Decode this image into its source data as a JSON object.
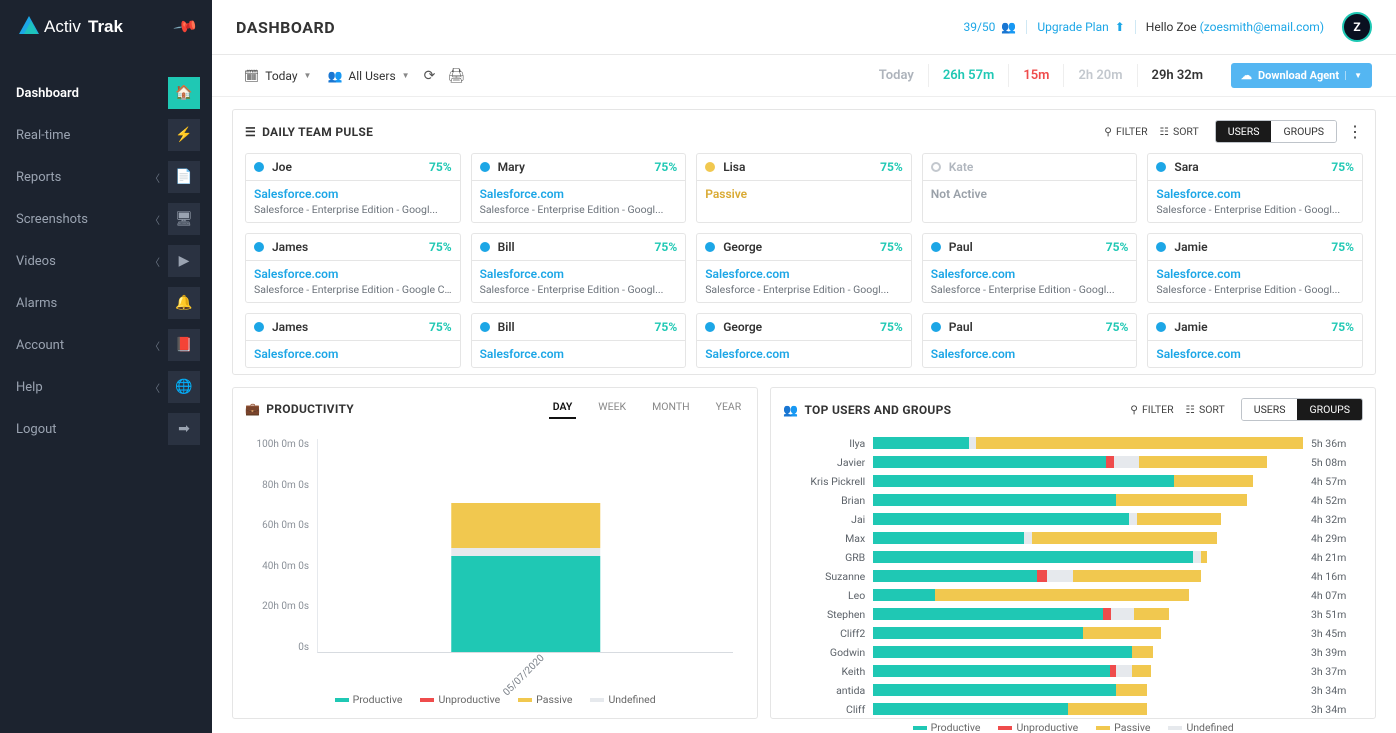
{
  "brand": {
    "name": "ActivTrak"
  },
  "sidebar": {
    "items": [
      {
        "label": "Dashboard",
        "icon": "home",
        "active": true,
        "chev": false
      },
      {
        "label": "Real-time",
        "icon": "bolt",
        "chev": false
      },
      {
        "label": "Reports",
        "icon": "file",
        "chev": true
      },
      {
        "label": "Screenshots",
        "icon": "devices",
        "chev": true
      },
      {
        "label": "Videos",
        "icon": "video",
        "chev": true
      },
      {
        "label": "Alarms",
        "icon": "bell",
        "chev": false
      },
      {
        "label": "Account",
        "icon": "book",
        "chev": true
      },
      {
        "label": "Help",
        "icon": "globe",
        "chev": true
      },
      {
        "label": "Logout",
        "icon": "exit",
        "chev": false
      }
    ]
  },
  "header": {
    "title": "DASHBOARD",
    "agents": "39/50",
    "upgrade": "Upgrade Plan",
    "hello": "Hello Zoe",
    "email": "(zoesmith@email.com)",
    "avatar": "Z"
  },
  "toolbar": {
    "date": "Today",
    "scope": "All Users",
    "times": {
      "label": "Today",
      "productive": "26h 57m",
      "unproductive": "15m",
      "passive": "2h 20m",
      "total": "29h 32m"
    },
    "download": "Download Agent"
  },
  "colors": {
    "productive": "#1fc8b4",
    "unproductive": "#ef4c4c",
    "passive": "#f1c84f",
    "undefined": "#e6e9ed",
    "blue": "#1ca6e6"
  },
  "pulse": {
    "title": "DAILY TEAM PULSE",
    "filter": "FILTER",
    "sort": "SORT",
    "seg": [
      "USERS",
      "GROUPS"
    ],
    "seg_active": 0,
    "rows": [
      [
        {
          "name": "Joe",
          "pct": "75%",
          "status": "active",
          "app": "Salesforce.com",
          "sub": "Salesforce - Enterprise Edition - Googl..."
        },
        {
          "name": "Mary",
          "pct": "75%",
          "status": "active",
          "app": "Salesforce.com",
          "sub": "Salesforce - Enterprise Edition - Googl..."
        },
        {
          "name": "Lisa",
          "pct": "75%",
          "status": "passive",
          "app": "Passive",
          "sub": ""
        },
        {
          "name": "Kate",
          "pct": "",
          "status": "inactive",
          "app": "Not Active",
          "sub": ""
        },
        {
          "name": "Sara",
          "pct": "75%",
          "status": "active",
          "app": "Salesforce.com",
          "sub": "Salesforce - Enterprise Edition - Googl..."
        }
      ],
      [
        {
          "name": "James",
          "pct": "75%",
          "status": "active",
          "app": "Salesforce.com",
          "sub": "Salesforce - Enterprise Edition - Google C..."
        },
        {
          "name": "Bill",
          "pct": "75%",
          "status": "active",
          "app": "Salesforce.com",
          "sub": "Salesforce - Enterprise Edition - Googl..."
        },
        {
          "name": "George",
          "pct": "75%",
          "status": "active",
          "app": "Salesforce.com",
          "sub": "Salesforce - Enterprise Edition - Googl..."
        },
        {
          "name": "Paul",
          "pct": "75%",
          "status": "active",
          "app": "Salesforce.com",
          "sub": "Salesforce - Enterprise Edition - Googl..."
        },
        {
          "name": "Jamie",
          "pct": "75%",
          "status": "active",
          "app": "Salesforce.com",
          "sub": "Salesforce - Enterprise Edition - Googl..."
        }
      ],
      [
        {
          "name": "James",
          "pct": "75%",
          "status": "active",
          "app": "Salesforce.com",
          "sub": ""
        },
        {
          "name": "Bill",
          "pct": "75%",
          "status": "active",
          "app": "Salesforce.com",
          "sub": ""
        },
        {
          "name": "George",
          "pct": "75%",
          "status": "active",
          "app": "Salesforce.com",
          "sub": ""
        },
        {
          "name": "Paul",
          "pct": "75%",
          "status": "active",
          "app": "Salesforce.com",
          "sub": ""
        },
        {
          "name": "Jamie",
          "pct": "75%",
          "status": "active",
          "app": "Salesforce.com",
          "sub": ""
        }
      ]
    ]
  },
  "productivity": {
    "title": "PRODUCTIVITY",
    "tabs": [
      "DAY",
      "WEEK",
      "MONTH",
      "YEAR"
    ],
    "active_tab": 0,
    "y_ticks": [
      "100h 0m 0s",
      "80h 0m 0s",
      "60h 0m 0s",
      "40h 0m 0s",
      "20h 0m 0s",
      "0s"
    ],
    "y_max_hours": 100,
    "x_label": "05/07/2020",
    "stack": {
      "productive": 45,
      "undefined": 4,
      "passive": 21,
      "unproductive": 0
    },
    "legend": [
      [
        "Productive",
        "#1fc8b4"
      ],
      [
        "Unproductive",
        "#ef4c4c"
      ],
      [
        "Passive",
        "#f1c84f"
      ],
      [
        "Undefined",
        "#e6e9ed"
      ]
    ]
  },
  "topusers": {
    "title": "TOP USERS AND GROUPS",
    "filter": "FILTER",
    "sort": "SORT",
    "seg": [
      "USERS",
      "GROUPS"
    ],
    "seg_active": 1,
    "max_minutes": 336,
    "rows": [
      {
        "name": "Ilya",
        "time": "5h 36m",
        "seg": [
          {
            "c": "productive",
            "m": 75
          },
          {
            "c": "undefined",
            "m": 5
          },
          {
            "c": "passive",
            "m": 256
          }
        ]
      },
      {
        "name": "Javier",
        "time": "5h 08m",
        "seg": [
          {
            "c": "productive",
            "m": 182
          },
          {
            "c": "unproductive",
            "m": 6
          },
          {
            "c": "undefined",
            "m": 20
          },
          {
            "c": "passive",
            "m": 100
          }
        ]
      },
      {
        "name": "Kris Pickrell",
        "time": "4h 57m",
        "seg": [
          {
            "c": "productive",
            "m": 235
          },
          {
            "c": "passive",
            "m": 62
          }
        ]
      },
      {
        "name": "Brian",
        "time": "4h 52m",
        "seg": [
          {
            "c": "productive",
            "m": 190
          },
          {
            "c": "passive",
            "m": 102
          }
        ]
      },
      {
        "name": "Jai",
        "time": "4h 32m",
        "seg": [
          {
            "c": "productive",
            "m": 200
          },
          {
            "c": "undefined",
            "m": 6
          },
          {
            "c": "passive",
            "m": 66
          }
        ]
      },
      {
        "name": "Max",
        "time": "4h 29m",
        "seg": [
          {
            "c": "productive",
            "m": 118
          },
          {
            "c": "undefined",
            "m": 6
          },
          {
            "c": "passive",
            "m": 145
          }
        ]
      },
      {
        "name": "GRB",
        "time": "4h 21m",
        "seg": [
          {
            "c": "productive",
            "m": 250
          },
          {
            "c": "undefined",
            "m": 6
          },
          {
            "c": "passive",
            "m": 5
          }
        ]
      },
      {
        "name": "Suzanne",
        "time": "4h 16m",
        "seg": [
          {
            "c": "productive",
            "m": 128
          },
          {
            "c": "unproductive",
            "m": 8
          },
          {
            "c": "undefined",
            "m": 20
          },
          {
            "c": "passive",
            "m": 100
          }
        ]
      },
      {
        "name": "Leo",
        "time": "4h 07m",
        "seg": [
          {
            "c": "productive",
            "m": 48
          },
          {
            "c": "passive",
            "m": 199
          }
        ]
      },
      {
        "name": "Stephen",
        "time": "3h 51m",
        "seg": [
          {
            "c": "productive",
            "m": 180
          },
          {
            "c": "unproductive",
            "m": 6
          },
          {
            "c": "undefined",
            "m": 18
          },
          {
            "c": "passive",
            "m": 27
          }
        ]
      },
      {
        "name": "Cliff2",
        "time": "3h 45m",
        "seg": [
          {
            "c": "productive",
            "m": 164
          },
          {
            "c": "passive",
            "m": 61
          }
        ]
      },
      {
        "name": "Godwin",
        "time": "3h 39m",
        "seg": [
          {
            "c": "productive",
            "m": 202
          },
          {
            "c": "passive",
            "m": 17
          }
        ]
      },
      {
        "name": "Keith",
        "time": "3h 37m",
        "seg": [
          {
            "c": "productive",
            "m": 185
          },
          {
            "c": "unproductive",
            "m": 5
          },
          {
            "c": "undefined",
            "m": 12
          },
          {
            "c": "passive",
            "m": 15
          }
        ]
      },
      {
        "name": "antida",
        "time": "3h 34m",
        "seg": [
          {
            "c": "productive",
            "m": 190
          },
          {
            "c": "passive",
            "m": 24
          }
        ]
      },
      {
        "name": "Cliff",
        "time": "3h 34m",
        "seg": [
          {
            "c": "productive",
            "m": 152
          },
          {
            "c": "passive",
            "m": 62
          }
        ]
      }
    ],
    "legend": [
      [
        "Productive",
        "#1fc8b4"
      ],
      [
        "Unproductive",
        "#ef4c4c"
      ],
      [
        "Passive",
        "#f1c84f"
      ],
      [
        "Undefined",
        "#e6e9ed"
      ]
    ]
  }
}
